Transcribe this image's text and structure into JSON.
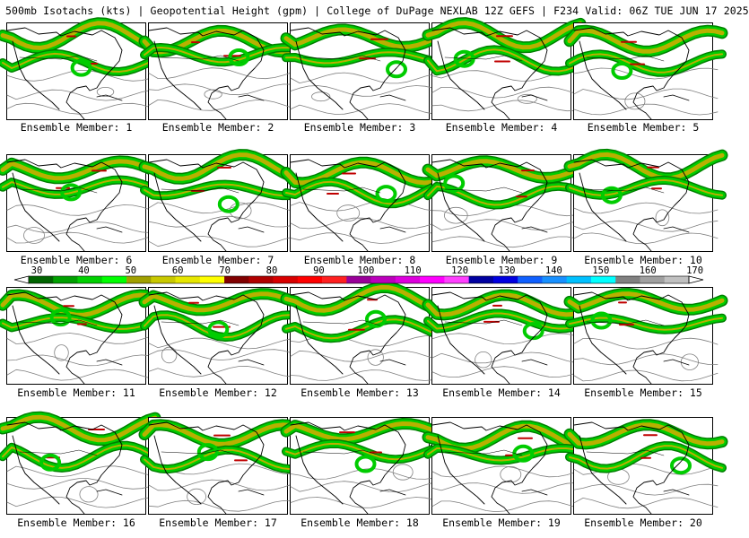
{
  "header": {
    "title": "500mb Isotachs (kts) | Geopotential Height (gpm) | College of DuPage NEXLAB",
    "run_info": "12Z GEFS | F234 Valid: 06Z TUE JUN 17 2025"
  },
  "members": [
    {
      "label": "Ensemble Member: 1"
    },
    {
      "label": "Ensemble Member: 2"
    },
    {
      "label": "Ensemble Member: 3"
    },
    {
      "label": "Ensemble Member: 4"
    },
    {
      "label": "Ensemble Member: 5"
    },
    {
      "label": "Ensemble Member: 6"
    },
    {
      "label": "Ensemble Member: 7"
    },
    {
      "label": "Ensemble Member: 8"
    },
    {
      "label": "Ensemble Member: 9"
    },
    {
      "label": "Ensemble Member: 10"
    },
    {
      "label": "Ensemble Member: 11"
    },
    {
      "label": "Ensemble Member: 12"
    },
    {
      "label": "Ensemble Member: 13"
    },
    {
      "label": "Ensemble Member: 14"
    },
    {
      "label": "Ensemble Member: 15"
    },
    {
      "label": "Ensemble Member: 16"
    },
    {
      "label": "Ensemble Member: 17"
    },
    {
      "label": "Ensemble Member: 18"
    },
    {
      "label": "Ensemble Member: 19"
    },
    {
      "label": "Ensemble Member: 20"
    }
  ],
  "colorbar": {
    "ticks": [
      "30",
      "40",
      "50",
      "60",
      "70",
      "80",
      "90",
      "100",
      "110",
      "120",
      "130",
      "140",
      "150",
      "160",
      "170"
    ],
    "colors": [
      "#006400",
      "#00a000",
      "#00d000",
      "#00ff00",
      "#a0a000",
      "#c8c800",
      "#e6e600",
      "#ffff00",
      "#800000",
      "#b00000",
      "#d80000",
      "#ff0000",
      "#ff2020",
      "#990099",
      "#bb00bb",
      "#dd00dd",
      "#ff00ff",
      "#ff40ff",
      "#0000a0",
      "#0000e0",
      "#1060ff",
      "#1890ff",
      "#00c0ff",
      "#00ffff",
      "#808080",
      "#a0a0a0",
      "#c0c0c0"
    ]
  },
  "map_colors": {
    "wind_light": "#00cc00",
    "wind_dark": "#008000",
    "wind_core": "#b8b000",
    "wind_max": "#c00000",
    "height_contour": "#808080",
    "coastline": "#000000"
  }
}
